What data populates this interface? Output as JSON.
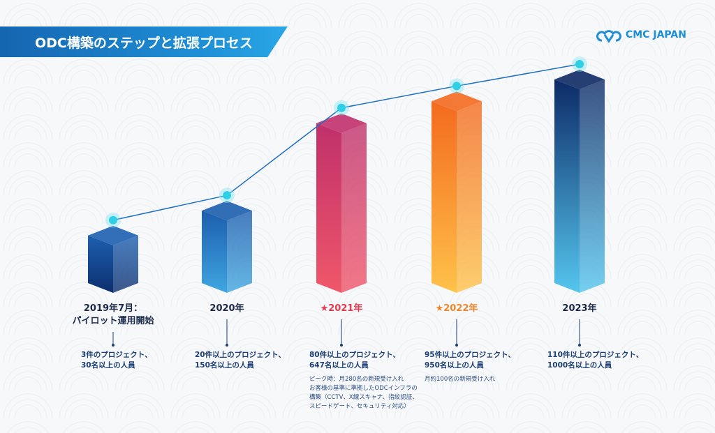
{
  "title": "ODC構築のステップと拡張プロセス",
  "logo": "CMC JAPAN",
  "chart_data": {
    "type": "bar",
    "categories": [
      "2019年7月：パイロット運用開始",
      "2020年",
      "2021年",
      "2022年",
      "2023年"
    ],
    "values": [
      3,
      20,
      80,
      95,
      110
    ],
    "value_label": "プロジェクト件数",
    "people": [
      30,
      150,
      647,
      950,
      1000
    ],
    "steps": [
      {
        "label1": "2019年7月：",
        "label2": "パイロット運用開始",
        "star": "",
        "line1": "3件のプロジェクト、",
        "line2": "30名以上の人員",
        "notes": [],
        "colors": [
          "#1d5fb0",
          "#0c2f6e"
        ]
      },
      {
        "label1": "2020年",
        "label2": "",
        "star": "",
        "line1": "20件以上のプロジェクト、",
        "line2": "150名以上の人員",
        "notes": [],
        "colors": [
          "#1c5eae",
          "#3fa6e0"
        ]
      },
      {
        "label1": "2021年",
        "label2": "",
        "star": "★",
        "line1": "80件以上のプロジェクト、",
        "line2": "647名以上の人員",
        "notes": [
          "ピーク時：月280名の新規受け入れ",
          "お客様の基準に準拠したODCインフラの",
          "構築（CCTV、X線スキャナ、指紋認証、",
          "スピードゲート、セキュリティ対応）"
        ],
        "colors": [
          "#c0306a",
          "#f0576a"
        ]
      },
      {
        "label1": "2022年",
        "label2": "",
        "star": "★",
        "line1": "95件以上のプロジェクト、",
        "line2": "950名以上の人員",
        "notes": [
          "月約100名の新規受け入れ"
        ],
        "colors": [
          "#f36a1e",
          "#ffc24a"
        ]
      },
      {
        "label1": "2023年",
        "label2": "",
        "star": "",
        "line1": "110件以上のプロジェクト、",
        "line2": "1000名以上の人員",
        "notes": [],
        "colors": [
          "#0d2a66",
          "#55c6ee"
        ]
      }
    ]
  }
}
